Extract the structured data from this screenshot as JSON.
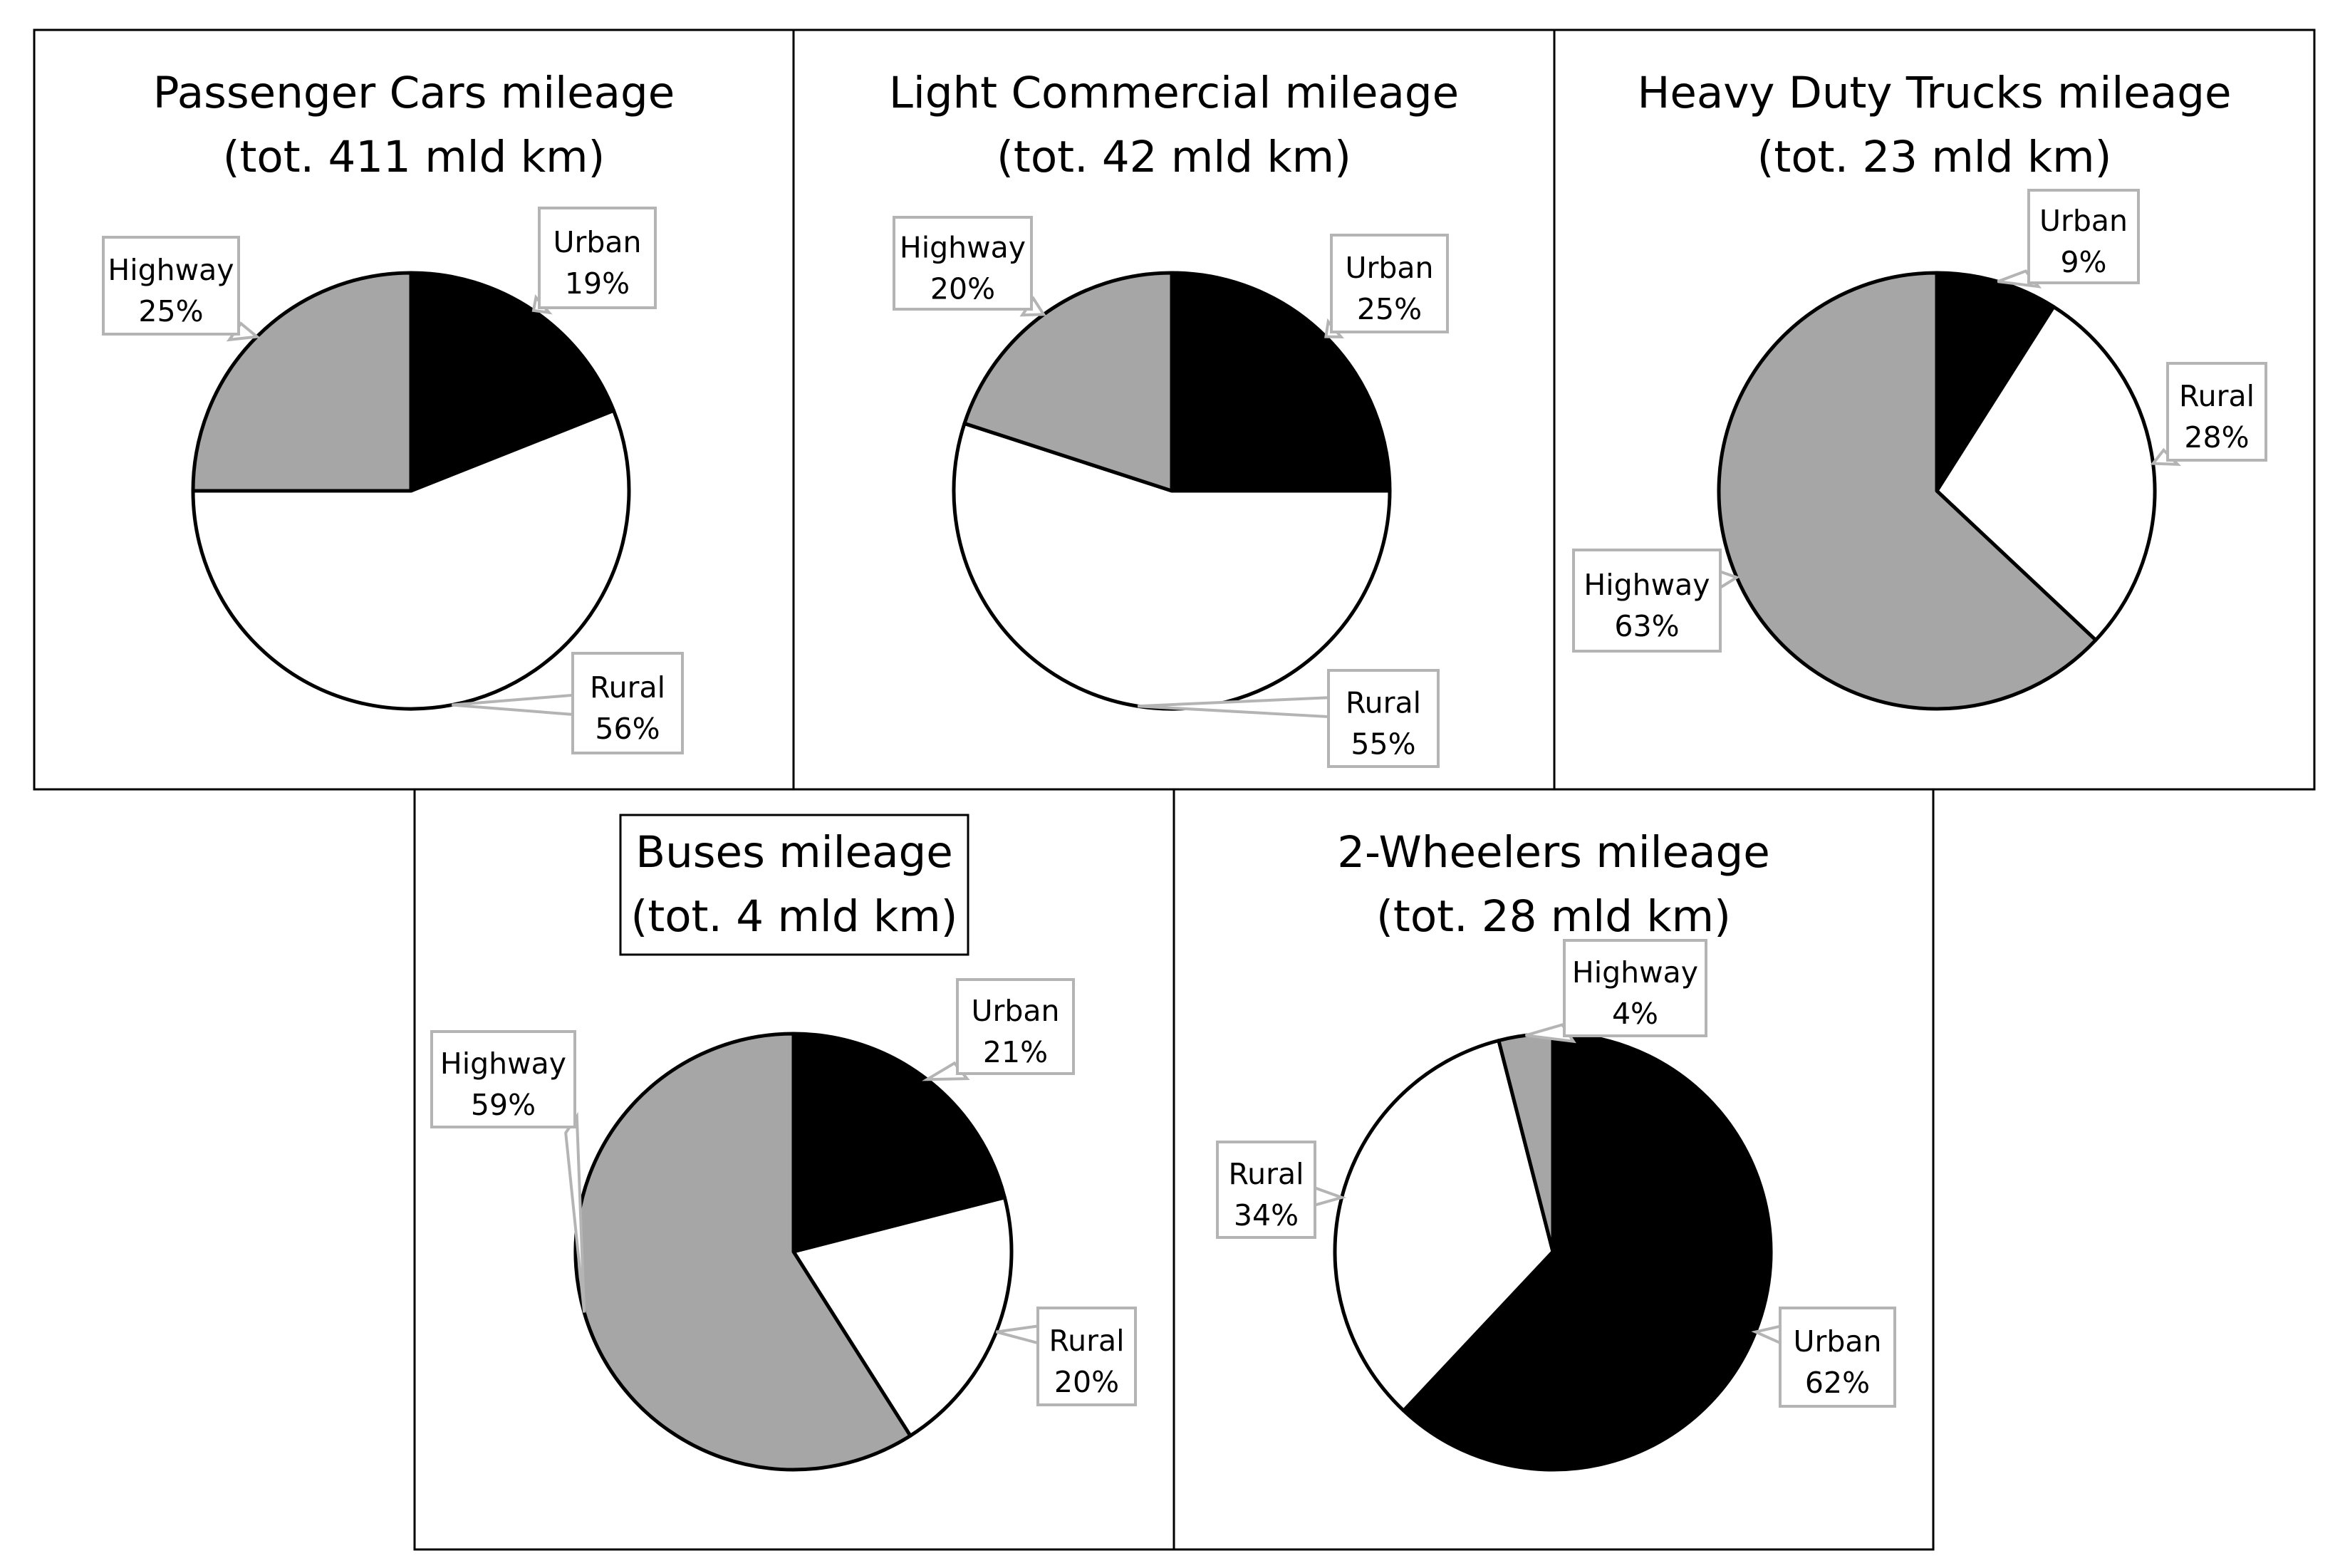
{
  "chart_data": [
    {
      "type": "pie",
      "title_line1": "Passenger Cars mileage",
      "title_line2": "(tot. 411 mld km)",
      "title_boxed": false,
      "slices": [
        {
          "category": "Urban",
          "value": 19,
          "label": "19%",
          "color": "#000000"
        },
        {
          "category": "Rural",
          "value": 56,
          "label": "56%",
          "color": "#ffffff"
        },
        {
          "category": "Highway",
          "value": 25,
          "label": "25%",
          "color": "#a6a6a6"
        }
      ]
    },
    {
      "type": "pie",
      "title_line1": "Light Commercial mileage",
      "title_line2": "(tot. 42 mld km)",
      "title_boxed": false,
      "slices": [
        {
          "category": "Urban",
          "value": 25,
          "label": "25%",
          "color": "#000000"
        },
        {
          "category": "Rural",
          "value": 55,
          "label": "55%",
          "color": "#ffffff"
        },
        {
          "category": "Highway",
          "value": 20,
          "label": "20%",
          "color": "#a6a6a6"
        }
      ]
    },
    {
      "type": "pie",
      "title_line1": "Heavy Duty Trucks mileage",
      "title_line2": "(tot. 23 mld km)",
      "title_boxed": false,
      "slices": [
        {
          "category": "Urban",
          "value": 9,
          "label": "9%",
          "color": "#000000"
        },
        {
          "category": "Rural",
          "value": 28,
          "label": "28%",
          "color": "#ffffff"
        },
        {
          "category": "Highway",
          "value": 63,
          "label": "63%",
          "color": "#a6a6a6"
        }
      ]
    },
    {
      "type": "pie",
      "title_line1": "Buses mileage",
      "title_line2": "(tot. 4 mld km)",
      "title_boxed": true,
      "slices": [
        {
          "category": "Urban",
          "value": 21,
          "label": "21%",
          "color": "#000000"
        },
        {
          "category": "Rural",
          "value": 20,
          "label": "20%",
          "color": "#ffffff"
        },
        {
          "category": "Highway",
          "value": 59,
          "label": "59%",
          "color": "#a6a6a6"
        }
      ]
    },
    {
      "type": "pie",
      "title_line1": "2-Wheelers mileage",
      "title_line2": "(tot. 28 mld km)",
      "title_boxed": false,
      "slices": [
        {
          "category": "Urban",
          "value": 62,
          "label": "62%",
          "color": "#000000"
        },
        {
          "category": "Rural",
          "value": 34,
          "label": "34%",
          "color": "#ffffff"
        },
        {
          "category": "Highway",
          "value": 4,
          "label": "4%",
          "color": "#a6a6a6"
        }
      ]
    }
  ]
}
